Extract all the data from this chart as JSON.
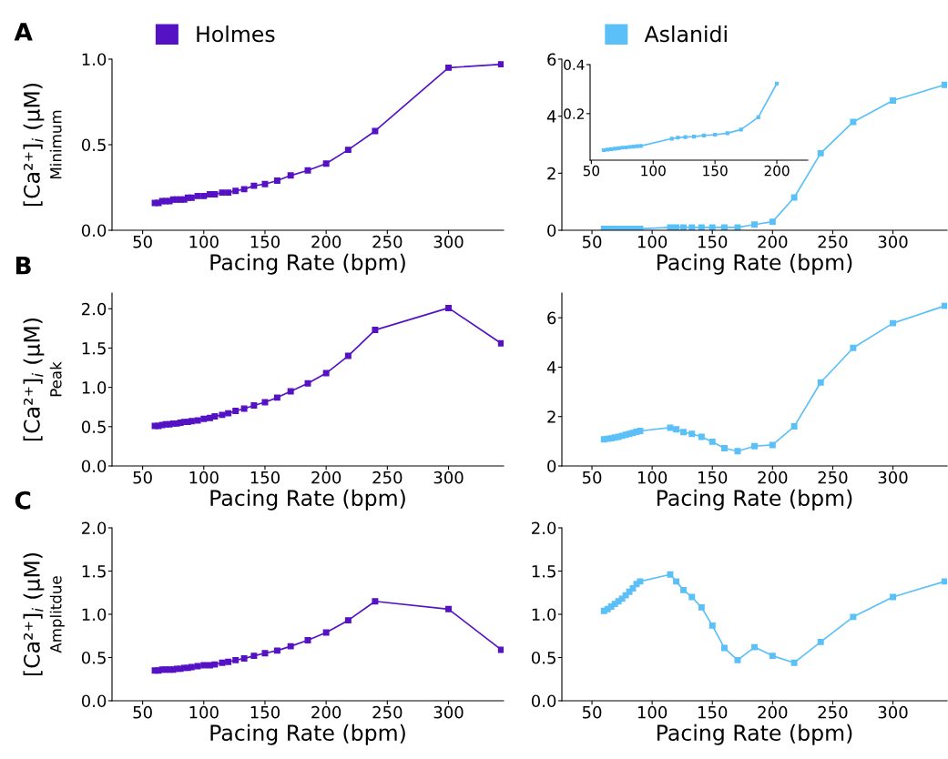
{
  "chart_data": [
    {
      "type": "line",
      "annotations": [
        "A"
      ],
      "xlabel": "Pacing Rate (bpm)",
      "ylabel": "[Ca²⁺]$_{i}$ (μM)\nMinimum",
      "xlim": [
        25,
        345
      ],
      "ylim": [
        0,
        1.0
      ],
      "xticks": [
        50,
        100,
        150,
        200,
        250,
        300
      ],
      "yticks": [
        {
          "value": 0,
          "label": "0.0"
        },
        0.5,
        {
          "value": 1,
          "label": "1.0"
        }
      ],
      "marker": "square",
      "legend": "top left",
      "series": [
        {
          "name": "Holmes",
          "color": "#5512c4",
          "x": [
            60,
            63,
            66,
            69,
            72,
            75,
            78,
            81,
            84,
            87,
            90,
            95,
            100,
            105,
            109,
            115,
            120,
            126,
            133,
            141,
            150,
            160,
            171,
            185,
            200,
            218,
            240,
            300,
            343
          ],
          "values": [
            0.16,
            0.16,
            0.17,
            0.17,
            0.17,
            0.18,
            0.18,
            0.18,
            0.18,
            0.19,
            0.19,
            0.2,
            0.2,
            0.21,
            0.21,
            0.22,
            0.22,
            0.23,
            0.24,
            0.26,
            0.27,
            0.29,
            0.32,
            0.35,
            0.39,
            0.47,
            0.58,
            0.95,
            0.97
          ]
        }
      ]
    },
    {
      "type": "line",
      "xlabel": "Pacing Rate (bpm)",
      "xlim": [
        25,
        345
      ],
      "ylim": [
        0,
        6
      ],
      "xticks": [
        50,
        100,
        150,
        200,
        250,
        300
      ],
      "yticks": [
        0,
        2,
        4,
        6
      ],
      "marker": "square",
      "legend": "top left",
      "series": [
        {
          "name": "Aslanidi",
          "color": "#5bc0f8",
          "x": [
            60,
            63,
            66,
            69,
            72,
            75,
            78,
            81,
            84,
            87,
            90,
            115,
            120,
            126,
            133,
            141,
            150,
            160,
            171,
            185,
            200,
            218,
            240,
            267,
            300,
            343
          ],
          "values": [
            0.05,
            0.05,
            0.05,
            0.05,
            0.05,
            0.05,
            0.05,
            0.05,
            0.05,
            0.05,
            0.05,
            0.1,
            0.1,
            0.1,
            0.1,
            0.1,
            0.1,
            0.1,
            0.1,
            0.2,
            0.3,
            1.15,
            2.7,
            3.8,
            4.55,
            5.1
          ]
        }
      ]
    },
    {
      "type": "line",
      "xlim": [
        49,
        225
      ],
      "ylim": [
        0.01,
        0.4
      ],
      "xticks": [
        50,
        100,
        150,
        200
      ],
      "yticks": [
        0.2,
        0.4
      ],
      "marker": "square",
      "series": [
        {
          "color": "#5bc0f8",
          "x": [
            60,
            63,
            66,
            69,
            72,
            75,
            78,
            81,
            84,
            87,
            90,
            115,
            120,
            126,
            133,
            141,
            150,
            160,
            171,
            185,
            200
          ],
          "values": [
            0.051,
            0.053,
            0.055,
            0.057,
            0.059,
            0.061,
            0.062,
            0.064,
            0.065,
            0.067,
            0.068,
            0.098,
            0.102,
            0.104,
            0.106,
            0.111,
            0.114,
            0.12,
            0.135,
            0.185,
            0.323
          ]
        }
      ]
    },
    {
      "type": "line",
      "annotations": [
        "B"
      ],
      "xlabel": "Pacing Rate (bpm)",
      "ylabel": "[Ca²⁺]$_{i}$ (μM)\nPeak",
      "xlim": [
        25,
        345
      ],
      "ylim": [
        0,
        2.2
      ],
      "xticks": [
        50,
        100,
        150,
        200,
        250,
        300
      ],
      "yticks": [
        {
          "value": 0,
          "label": "0.0"
        },
        0.5,
        {
          "value": 1,
          "label": "1.0"
        },
        1.5,
        {
          "value": 2,
          "label": "2.0"
        }
      ],
      "marker": "square",
      "series": [
        {
          "color": "#5512c4",
          "x": [
            60,
            63,
            66,
            69,
            72,
            75,
            78,
            81,
            84,
            87,
            90,
            95,
            100,
            105,
            109,
            115,
            120,
            126,
            133,
            141,
            150,
            160,
            171,
            185,
            200,
            218,
            240,
            300,
            343
          ],
          "values": [
            0.51,
            0.51,
            0.52,
            0.53,
            0.53,
            0.54,
            0.54,
            0.55,
            0.56,
            0.56,
            0.57,
            0.58,
            0.6,
            0.61,
            0.63,
            0.65,
            0.67,
            0.7,
            0.73,
            0.77,
            0.81,
            0.87,
            0.95,
            1.05,
            1.18,
            1.4,
            1.73,
            2.01,
            1.56
          ]
        }
      ]
    },
    {
      "type": "line",
      "xlabel": "Pacing Rate (bpm)",
      "xlim": [
        25,
        345
      ],
      "ylim": [
        0,
        7
      ],
      "xticks": [
        50,
        100,
        150,
        200,
        250,
        300
      ],
      "yticks": [
        0,
        2,
        4,
        6
      ],
      "marker": "square",
      "series": [
        {
          "color": "#5bc0f8",
          "x": [
            60,
            63,
            66,
            69,
            72,
            75,
            78,
            81,
            84,
            87,
            90,
            115,
            120,
            126,
            133,
            141,
            150,
            160,
            171,
            185,
            200,
            218,
            240,
            267,
            300,
            343
          ],
          "values": [
            1.08,
            1.1,
            1.12,
            1.15,
            1.18,
            1.22,
            1.26,
            1.3,
            1.34,
            1.38,
            1.42,
            1.55,
            1.48,
            1.37,
            1.3,
            1.18,
            0.98,
            0.72,
            0.6,
            0.8,
            0.85,
            1.6,
            3.38,
            4.78,
            5.78,
            6.48
          ]
        }
      ]
    },
    {
      "type": "line",
      "annotations": [
        "C"
      ],
      "xlabel": "Pacing Rate (bpm)",
      "ylabel": "[Ca²⁺]$_{i}$ (μM)\nAmplitdue",
      "xlim": [
        25,
        345
      ],
      "ylim": [
        0,
        2.0
      ],
      "xticks": [
        50,
        100,
        150,
        200,
        250,
        300
      ],
      "yticks": [
        {
          "value": 0,
          "label": "0.0"
        },
        0.5,
        {
          "value": 1,
          "label": "1.0"
        },
        1.5,
        {
          "value": 2,
          "label": "2.0"
        }
      ],
      "marker": "square",
      "series": [
        {
          "color": "#5512c4",
          "x": [
            60,
            63,
            66,
            69,
            72,
            75,
            78,
            81,
            84,
            87,
            90,
            95,
            100,
            105,
            109,
            115,
            120,
            126,
            133,
            141,
            150,
            160,
            171,
            185,
            200,
            218,
            240,
            300,
            343
          ],
          "values": [
            0.35,
            0.35,
            0.36,
            0.36,
            0.36,
            0.36,
            0.37,
            0.37,
            0.38,
            0.38,
            0.39,
            0.4,
            0.41,
            0.41,
            0.42,
            0.44,
            0.45,
            0.47,
            0.49,
            0.52,
            0.55,
            0.58,
            0.63,
            0.7,
            0.79,
            0.93,
            1.15,
            1.06,
            0.59
          ]
        }
      ]
    },
    {
      "type": "line",
      "xlabel": "Pacing Rate (bpm)",
      "xlim": [
        25,
        345
      ],
      "ylim": [
        0,
        2.0
      ],
      "xticks": [
        50,
        100,
        150,
        200,
        250,
        300
      ],
      "yticks": [
        {
          "value": 0,
          "label": "0.0"
        },
        0.5,
        {
          "value": 1,
          "label": "1.0"
        },
        1.5,
        {
          "value": 2,
          "label": "2.0"
        }
      ],
      "marker": "square",
      "series": [
        {
          "color": "#5bc0f8",
          "x": [
            60,
            63,
            66,
            69,
            72,
            75,
            78,
            81,
            84,
            87,
            90,
            115,
            120,
            126,
            133,
            141,
            150,
            160,
            171,
            185,
            200,
            218,
            240,
            267,
            300,
            343
          ],
          "values": [
            1.04,
            1.06,
            1.09,
            1.12,
            1.15,
            1.18,
            1.22,
            1.26,
            1.3,
            1.35,
            1.38,
            1.46,
            1.38,
            1.28,
            1.2,
            1.08,
            0.87,
            0.61,
            0.47,
            0.62,
            0.52,
            0.44,
            0.68,
            0.97,
            1.2,
            1.38
          ]
        }
      ]
    }
  ]
}
